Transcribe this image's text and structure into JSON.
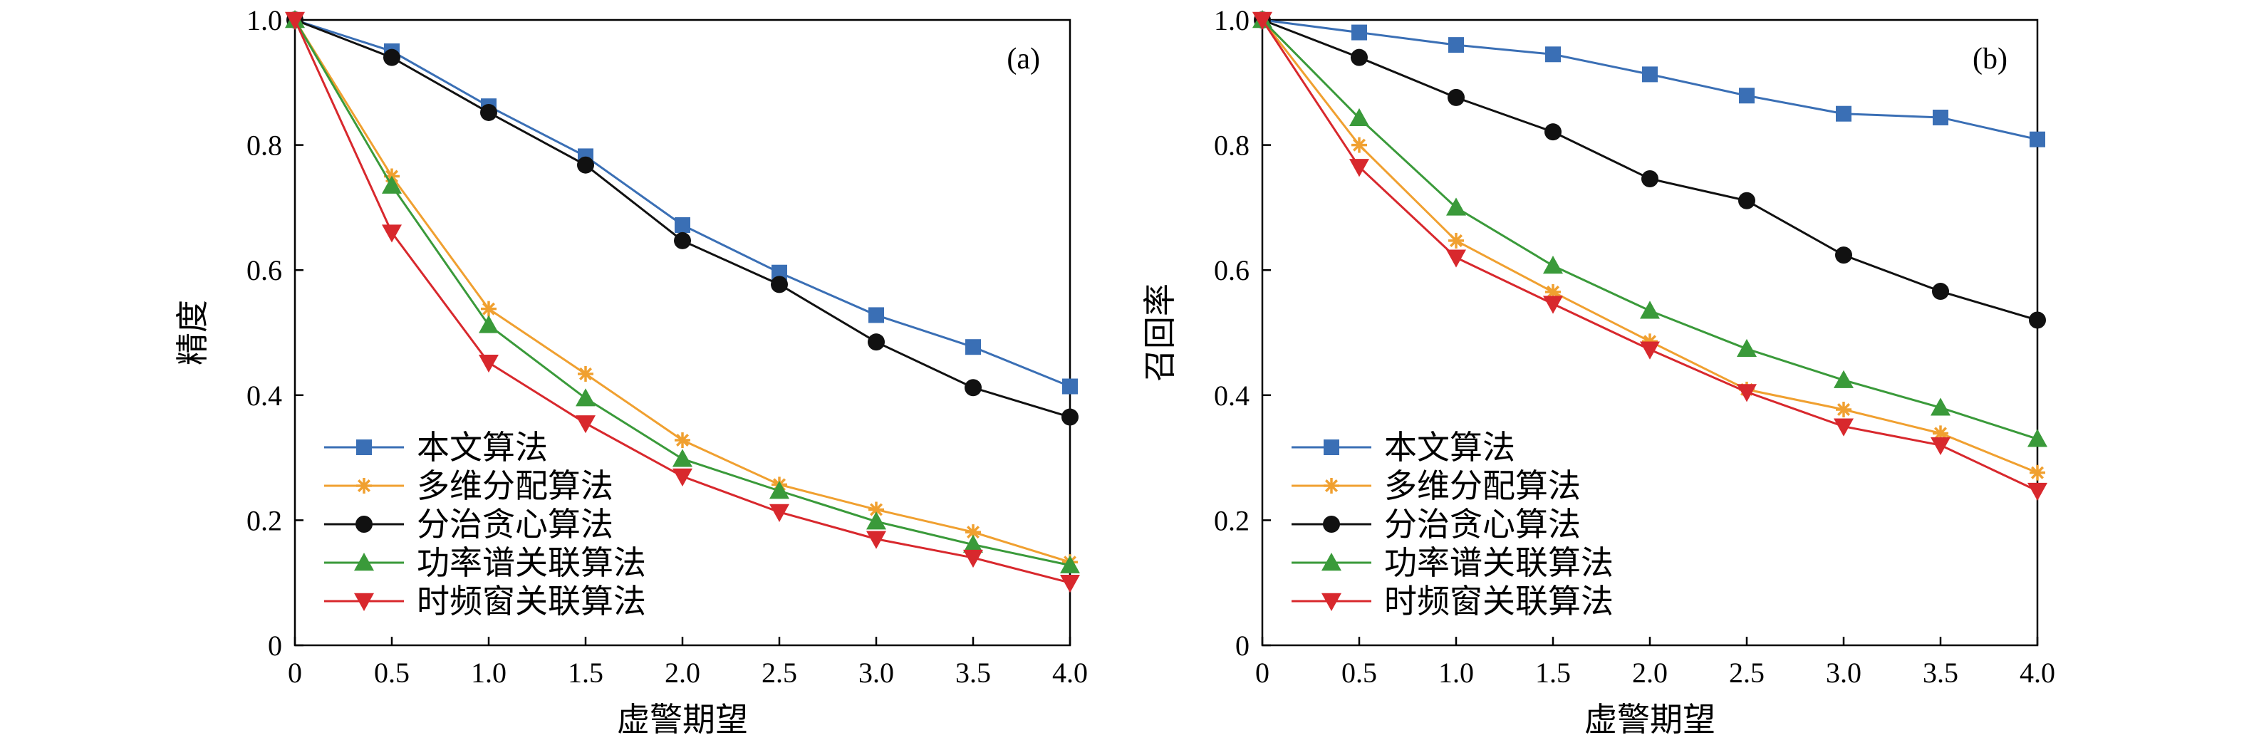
{
  "chart_data": [
    {
      "type": "line",
      "panel_label": "(a)",
      "xlabel": "虚警期望",
      "ylabel": "精度",
      "xlim": [
        0,
        4.0
      ],
      "ylim": [
        0,
        1.0
      ],
      "xticks": [
        "0",
        "0.5",
        "1.0",
        "1.5",
        "2.0",
        "2.5",
        "3.0",
        "3.5",
        "4.0"
      ],
      "yticks": [
        "0",
        "0.2",
        "0.4",
        "0.6",
        "0.8",
        "1.0"
      ],
      "grid": false,
      "legend_position": "bottom-left",
      "x": [
        0,
        0.5,
        1.0,
        1.5,
        2.0,
        2.5,
        3.0,
        3.5,
        4.0
      ],
      "series": [
        {
          "name": "本文算法",
          "color": "#3a6fb5",
          "marker": "square",
          "values": [
            1.0,
            0.95,
            0.862,
            0.782,
            0.672,
            0.596,
            0.528,
            0.477,
            0.414
          ]
        },
        {
          "name": "多维分配算法",
          "color": "#f0a030",
          "marker": "star",
          "values": [
            1.0,
            0.75,
            0.538,
            0.434,
            0.328,
            0.257,
            0.217,
            0.181,
            0.133
          ]
        },
        {
          "name": "分治贪心算法",
          "color": "#111111",
          "marker": "circle",
          "values": [
            1.0,
            0.94,
            0.852,
            0.768,
            0.647,
            0.577,
            0.485,
            0.412,
            0.365
          ]
        },
        {
          "name": "功率谱关联算法",
          "color": "#3a9a3a",
          "marker": "triangle-up",
          "values": [
            1.0,
            0.735,
            0.512,
            0.395,
            0.298,
            0.247,
            0.198,
            0.161,
            0.128
          ]
        },
        {
          "name": "时频窗关联算法",
          "color": "#d8282d",
          "marker": "triangle-down",
          "values": [
            1.0,
            0.66,
            0.452,
            0.355,
            0.27,
            0.213,
            0.17,
            0.14,
            0.1
          ]
        }
      ]
    },
    {
      "type": "line",
      "panel_label": "(b)",
      "xlabel": "虚警期望",
      "ylabel": "召回率",
      "xlim": [
        0,
        4.0
      ],
      "ylim": [
        0,
        1.0
      ],
      "xticks": [
        "0",
        "0.5",
        "1.0",
        "1.5",
        "2.0",
        "2.5",
        "3.0",
        "3.5",
        "4.0"
      ],
      "yticks": [
        "0",
        "0.2",
        "0.4",
        "0.6",
        "0.8",
        "1.0"
      ],
      "grid": false,
      "legend_position": "bottom-left",
      "x": [
        0,
        0.5,
        1.0,
        1.5,
        2.0,
        2.5,
        3.0,
        3.5,
        4.0
      ],
      "series": [
        {
          "name": "本文算法",
          "color": "#3a6fb5",
          "marker": "square",
          "values": [
            1.0,
            0.98,
            0.96,
            0.945,
            0.913,
            0.879,
            0.85,
            0.844,
            0.809
          ]
        },
        {
          "name": "多维分配算法",
          "color": "#f0a030",
          "marker": "star",
          "values": [
            1.0,
            0.8,
            0.647,
            0.565,
            0.486,
            0.409,
            0.377,
            0.339,
            0.276
          ]
        },
        {
          "name": "分治贪心算法",
          "color": "#111111",
          "marker": "circle",
          "values": [
            1.0,
            0.94,
            0.876,
            0.821,
            0.746,
            0.711,
            0.624,
            0.566,
            0.52
          ]
        },
        {
          "name": "功率谱关联算法",
          "color": "#3a9a3a",
          "marker": "triangle-up",
          "values": [
            1.0,
            0.843,
            0.7,
            0.607,
            0.535,
            0.474,
            0.424,
            0.38,
            0.33
          ]
        },
        {
          "name": "时频窗关联算法",
          "color": "#d8282d",
          "marker": "triangle-down",
          "values": [
            1.0,
            0.765,
            0.62,
            0.546,
            0.473,
            0.405,
            0.35,
            0.32,
            0.247
          ]
        }
      ]
    }
  ]
}
